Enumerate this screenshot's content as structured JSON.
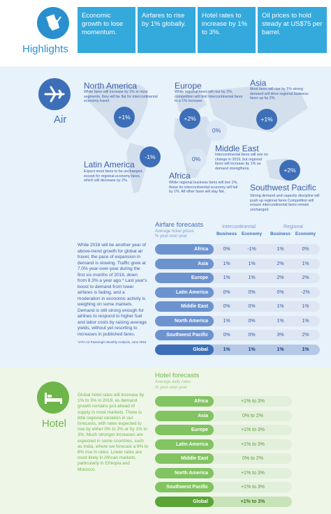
{
  "highlights": {
    "title": "Highlights",
    "boxes": [
      "Economic growth to lose momentum.",
      "Airfares to rise by 1% globally.",
      "Hotel rates to increase by 1% to 3%.",
      "Oil prices to hold steady at US$75 per barrel."
    ]
  },
  "air": {
    "title": "Air",
    "regions": {
      "north_america": {
        "name": "North America",
        "change": "+1%",
        "desc": "While fares will increase by 1% in most segments, they will be flat for intercontinental economy travel."
      },
      "europe": {
        "name": "Europe",
        "change": "+2%",
        "desc": "While regional fares will rise by 2%, competition will limit intercontinental fares to a 1% increase."
      },
      "asia": {
        "name": "Asia",
        "change": "+1%",
        "desc": "Most fares will rise by 1% strong demand will drive regional business fares up by 2%."
      },
      "middle_east": {
        "name": "Middle East",
        "change": "0%",
        "desc": "Intercontinental fares will see no change in 2019, but regional fares will increase by 1% as demand strengthens."
      },
      "latin_america": {
        "name": "Latin America",
        "change": "-1%",
        "desc": "Expect most fares to be unchanged, except for regional economy fares, which will decrease by 2%."
      },
      "africa": {
        "name": "Africa",
        "change": "0%",
        "desc": "While regional business fares will rise 1%, those for intercontinental economy will fall by 1%. All other fares will stay flat."
      },
      "southwest_pacific": {
        "name": "Southwest Pacific",
        "change": "+2%",
        "desc": "Strong demand and capacity discipline will push up regional fares Competition will ensure intercontinental fares remain unchanged."
      }
    },
    "body": "While 2018 will be another year of above-trend growth for global air travel, the pace of expansion in demand is slowing. Traffic grew at 7.0% year-over-year during the first six months of 2018, down from 8.3% a year ago.* Last year's boost to demand from lower airfares is fading, and a moderation in economic activity is weighing on some markets. Demand is still strong enough for airlines to respond to higher fuel and labor costs by raising average yields, without yet resorting to increases in published fares.",
    "note": "*IATA Air Passenger Monthly Analysis, June 2018",
    "table": {
      "title": "Airfare forecasts",
      "subtitle1": "Average ticket prices",
      "subtitle2": "% year-over-year",
      "group1": "Intercontinental",
      "group2": "Regional",
      "col1": "Business",
      "col2": "Economy",
      "col3": "Business",
      "col4": "Economy",
      "rows": [
        {
          "region": "Africa",
          "ib": "0%",
          "ie": "-1%",
          "rb": "1%",
          "re": "0%"
        },
        {
          "region": "Asia",
          "ib": "1%",
          "ie": "1%",
          "rb": "2%",
          "re": "1%"
        },
        {
          "region": "Europe",
          "ib": "1%",
          "ie": "1%",
          "rb": "2%",
          "re": "2%"
        },
        {
          "region": "Latin America",
          "ib": "0%",
          "ie": "0%",
          "rb": "0%",
          "re": "-2%"
        },
        {
          "region": "Middle East",
          "ib": "0%",
          "ie": "0%",
          "rb": "1%",
          "re": "1%"
        },
        {
          "region": "North America",
          "ib": "1%",
          "ie": "0%",
          "rb": "1%",
          "re": "1%"
        },
        {
          "region": "Southwest Pacific",
          "ib": "0%",
          "ie": "0%",
          "rb": "3%",
          "re": "2%"
        },
        {
          "region": "Global",
          "ib": "1%",
          "ie": "1%",
          "rb": "1%",
          "re": "1%"
        }
      ]
    }
  },
  "hotel": {
    "title": "Hotel",
    "body": "Global hotel rates will increase by 1% to 3% in 2019, as demand growth remains just ahead of supply in most markets. There is little regional variation in our forecasts, with rates expected to rise by either 0% to 2% or by 1% to 3%. Much stronger increases are expected in some countries, such as India, where we forecast a 6% to 8% rise in rates. Lower rates are most likely in African markets, particularly in Ethiopia and Morocco.",
    "table": {
      "title": "Hotel forecasts",
      "subtitle1": "Average daily rates",
      "subtitle2": "% year-over-year",
      "rows": [
        {
          "region": "Africa",
          "value": "+1% to 3%"
        },
        {
          "region": "Asia",
          "value": "0% to 2%"
        },
        {
          "region": "Europe",
          "value": "+1% to 3%"
        },
        {
          "region": "Latin America",
          "value": "+1% to 3%"
        },
        {
          "region": "Middle East",
          "value": "0% to 2%"
        },
        {
          "region": "North America",
          "value": "+1% to 3%"
        },
        {
          "region": "Southwest Pacific",
          "value": "+1% to 3%"
        },
        {
          "region": "Global",
          "value": "+1% to 3%"
        }
      ]
    }
  },
  "colors": {
    "highlight_blue": "#34a9dc",
    "air_blue": "#3d6fb8",
    "hotel_green": "#6eb64a"
  }
}
